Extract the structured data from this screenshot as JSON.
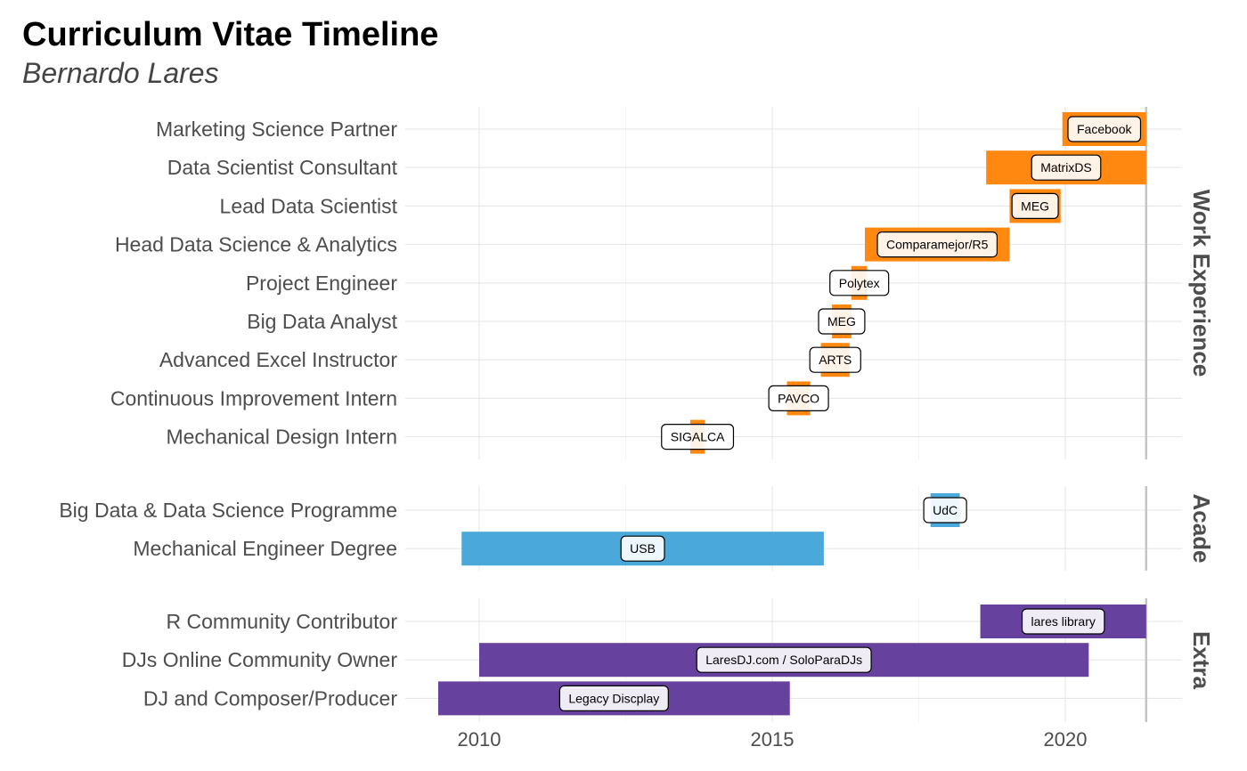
{
  "title": "Curriculum Vitae Timeline",
  "subtitle": "Bernardo Lares",
  "chart_data": {
    "type": "timeline",
    "x_ticks": [
      2010,
      2015,
      2020
    ],
    "xlim": [
      2008.75,
      2022.0
    ],
    "today_line": 2021.38,
    "panels": [
      {
        "name": "Work Experience",
        "color": "#FF8811",
        "items": [
          {
            "role": "Marketing Science Partner",
            "place": "Facebook",
            "start": 2019.95,
            "end": 2021.38
          },
          {
            "role": "Data Scientist Consultant",
            "place": "MatrixDS",
            "start": 2018.65,
            "end": 2021.38
          },
          {
            "role": "Lead Data Scientist",
            "place": "MEG",
            "start": 2019.05,
            "end": 2019.92
          },
          {
            "role": "Head Data Science & Analytics",
            "place": "Comparamejor/R5",
            "start": 2016.58,
            "end": 2019.05
          },
          {
            "role": "Project Engineer",
            "place": "Polytex",
            "start": 2016.35,
            "end": 2016.62
          },
          {
            "role": "Big Data Analyst",
            "place": "MEG",
            "start": 2016.02,
            "end": 2016.35
          },
          {
            "role": "Advanced Excel Instructor",
            "place": "ARTS",
            "start": 2015.83,
            "end": 2016.32
          },
          {
            "role": "Continuous Improvement Intern",
            "place": "PAVCO",
            "start": 2015.25,
            "end": 2015.65
          },
          {
            "role": "Mechanical Design Intern",
            "place": "SIGALCA",
            "start": 2013.6,
            "end": 2013.85
          }
        ]
      },
      {
        "name": "Acade",
        "color": "#4AA8DB",
        "items": [
          {
            "role": "Big Data & Data Science Programme",
            "place": "UdC",
            "start": 2017.7,
            "end": 2018.2
          },
          {
            "role": "Mechanical Engineer Degree",
            "place": "USB",
            "start": 2009.7,
            "end": 2015.88
          }
        ]
      },
      {
        "name": "Extra",
        "color": "#67419E",
        "items": [
          {
            "role": "R Community Contributor",
            "place": "lares library",
            "start": 2018.55,
            "end": 2021.38
          },
          {
            "role": "DJs Online Community Owner",
            "place": "LaresDJ.com / SoloParaDJs",
            "start": 2010.0,
            "end": 2020.4
          },
          {
            "role": "DJ and Composer/Producer",
            "place": "Legacy Discplay",
            "start": 2009.3,
            "end": 2015.3
          }
        ]
      }
    ]
  }
}
